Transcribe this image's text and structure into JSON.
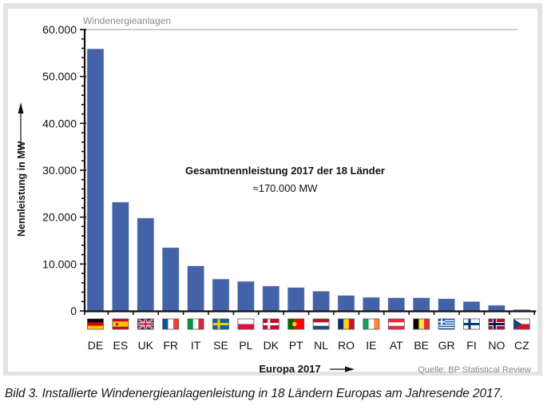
{
  "chart_data": {
    "type": "bar",
    "title": "Windenergieanlagen",
    "ylabel": "Nennleistung in MW",
    "xlabel": "Europa 2017",
    "ylim": [
      0,
      60000
    ],
    "yticks": [
      0,
      10000,
      20000,
      30000,
      40000,
      50000,
      60000
    ],
    "ytick_labels": [
      "0",
      "10.000",
      "20.000",
      "30.000",
      "40.000",
      "50.000",
      "60.000"
    ],
    "categories": [
      "DE",
      "ES",
      "UK",
      "FR",
      "IT",
      "SE",
      "PL",
      "DK",
      "PT",
      "NL",
      "RO",
      "IE",
      "AT",
      "BE",
      "GR",
      "FI",
      "NO",
      "CZ"
    ],
    "values": [
      55900,
      23200,
      19800,
      13500,
      9600,
      6800,
      6300,
      5300,
      5000,
      4200,
      3300,
      2900,
      2800,
      2800,
      2600,
      2000,
      1200,
      300
    ],
    "bar_color": "#4462a8",
    "annotation_title": "Gesamtnennleistung 2017 der 18 Länder",
    "annotation_value": "≈170.000 MW",
    "source": "Quelle: BP Statistical Review",
    "grid": false
  },
  "caption": "Bild 3. Installierte Windenergieanlagenleistung in 18 Ländern Europas am Jahresende 2017."
}
